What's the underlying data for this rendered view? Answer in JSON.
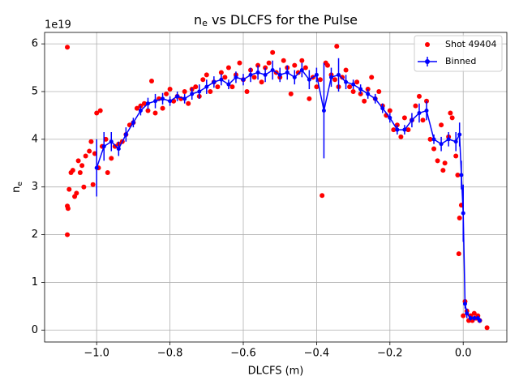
{
  "chart_data": {
    "type": "scatter",
    "title_parts": [
      "n",
      "e",
      " vs DLCFS for the Pulse"
    ],
    "x_label": "DLCFS (m)",
    "y_label_parts": [
      "n",
      "e"
    ],
    "y_offset_text": "1e19",
    "xlim": [
      -1.142,
      0.119
    ],
    "ylim": [
      -0.25,
      6.24
    ],
    "xticks": [
      {
        "value": -1.0,
        "label": "−1.0"
      },
      {
        "value": -0.8,
        "label": "−0.8"
      },
      {
        "value": -0.6,
        "label": "−0.6"
      },
      {
        "value": -0.4,
        "label": "−0.4"
      },
      {
        "value": -0.2,
        "label": "−0.2"
      },
      {
        "value": 0.0,
        "label": "0.0"
      }
    ],
    "yticks": [
      0,
      1,
      2,
      3,
      4,
      5,
      6
    ],
    "grid": true,
    "legend": "upper right",
    "series": [
      {
        "name": "Shot 49404",
        "color": "#ff0000",
        "kind": "points",
        "x": [
          -1.08,
          -1.08,
          -1.08,
          -1.078,
          -1.075,
          -1.07,
          -1.065,
          -1.06,
          -1.055,
          -1.05,
          -1.045,
          -1.04,
          -1.035,
          -1.03,
          -1.02,
          -1.015,
          -1.01,
          -1.005,
          -1.0,
          -0.99,
          -0.995,
          -0.985,
          -0.975,
          -0.97,
          -0.96,
          -0.95,
          -0.94,
          -0.93,
          -0.92,
          -0.91,
          -0.9,
          -0.89,
          -0.88,
          -0.87,
          -0.86,
          -0.85,
          -0.84,
          -0.83,
          -0.82,
          -0.81,
          -0.8,
          -0.79,
          -0.78,
          -0.77,
          -0.76,
          -0.75,
          -0.74,
          -0.73,
          -0.72,
          -0.71,
          -0.7,
          -0.69,
          -0.68,
          -0.67,
          -0.66,
          -0.65,
          -0.64,
          -0.63,
          -0.62,
          -0.61,
          -0.6,
          -0.59,
          -0.58,
          -0.57,
          -0.56,
          -0.55,
          -0.54,
          -0.53,
          -0.52,
          -0.51,
          -0.5,
          -0.49,
          -0.48,
          -0.47,
          -0.46,
          -0.45,
          -0.44,
          -0.43,
          -0.42,
          -0.41,
          -0.4,
          -0.39,
          -0.385,
          -0.375,
          -0.37,
          -0.36,
          -0.35,
          -0.345,
          -0.34,
          -0.33,
          -0.32,
          -0.31,
          -0.3,
          -0.29,
          -0.28,
          -0.27,
          -0.26,
          -0.25,
          -0.24,
          -0.23,
          -0.22,
          -0.21,
          -0.2,
          -0.19,
          -0.18,
          -0.17,
          -0.16,
          -0.15,
          -0.14,
          -0.13,
          -0.12,
          -0.11,
          -0.1,
          -0.09,
          -0.08,
          -0.07,
          -0.06,
          -0.055,
          -0.05,
          -0.04,
          -0.035,
          -0.03,
          -0.02,
          -0.015,
          -0.012,
          -0.01,
          -0.005,
          0.0,
          0.005,
          0.01,
          0.015,
          0.02,
          0.025,
          0.03,
          0.035,
          0.04,
          0.045,
          0.065
        ],
        "values": [
          5.93,
          2.0,
          2.6,
          2.55,
          2.95,
          3.3,
          3.35,
          2.8,
          2.87,
          3.55,
          3.3,
          3.45,
          3.0,
          3.65,
          3.75,
          3.95,
          3.05,
          3.7,
          4.55,
          4.6,
          3.4,
          3.85,
          4.0,
          3.3,
          3.6,
          3.85,
          3.9,
          3.95,
          4.1,
          4.3,
          4.35,
          4.65,
          4.7,
          4.75,
          4.6,
          5.22,
          4.55,
          4.85,
          4.65,
          4.95,
          5.05,
          4.8,
          4.9,
          4.85,
          5.0,
          4.75,
          5.05,
          5.1,
          4.9,
          5.25,
          5.35,
          5.0,
          5.2,
          5.1,
          5.4,
          5.3,
          5.5,
          5.1,
          5.35,
          5.6,
          5.25,
          5.0,
          5.45,
          5.3,
          5.55,
          5.2,
          5.5,
          5.6,
          5.82,
          5.4,
          5.3,
          5.65,
          5.5,
          4.95,
          5.55,
          5.4,
          5.65,
          5.5,
          4.85,
          5.3,
          5.1,
          5.25,
          2.82,
          5.6,
          5.55,
          5.35,
          5.25,
          5.95,
          5.1,
          5.3,
          5.45,
          5.1,
          5.0,
          5.2,
          4.95,
          4.8,
          5.05,
          5.3,
          4.85,
          5.0,
          4.7,
          4.5,
          4.6,
          4.2,
          4.3,
          4.05,
          4.45,
          4.2,
          4.4,
          4.7,
          4.9,
          4.4,
          4.8,
          4.0,
          3.8,
          3.55,
          4.3,
          3.35,
          3.5,
          4.05,
          4.55,
          4.45,
          3.65,
          3.25,
          1.6,
          2.35,
          2.62,
          0.3,
          0.6,
          0.4,
          0.2,
          0.3,
          0.2,
          0.35,
          0.25,
          0.3,
          0.2,
          0.05
        ]
      },
      {
        "name": "Binned",
        "color": "#0000ff",
        "kind": "errorbar",
        "x": [
          -1.0,
          -0.98,
          -0.96,
          -0.94,
          -0.92,
          -0.9,
          -0.88,
          -0.86,
          -0.84,
          -0.82,
          -0.8,
          -0.78,
          -0.76,
          -0.74,
          -0.72,
          -0.7,
          -0.68,
          -0.66,
          -0.64,
          -0.62,
          -0.6,
          -0.58,
          -0.56,
          -0.54,
          -0.52,
          -0.5,
          -0.48,
          -0.46,
          -0.44,
          -0.42,
          -0.4,
          -0.38,
          -0.36,
          -0.34,
          -0.32,
          -0.3,
          -0.28,
          -0.26,
          -0.24,
          -0.22,
          -0.2,
          -0.18,
          -0.16,
          -0.14,
          -0.12,
          -0.1,
          -0.08,
          -0.06,
          -0.04,
          -0.02,
          -0.01,
          -0.005,
          0.0,
          0.005,
          0.01,
          0.02,
          0.03,
          0.04,
          0.045
        ],
        "values": [
          3.4,
          3.85,
          3.95,
          3.8,
          4.1,
          4.35,
          4.6,
          4.75,
          4.8,
          4.85,
          4.8,
          4.9,
          4.85,
          4.95,
          5.0,
          5.1,
          5.2,
          5.25,
          5.15,
          5.3,
          5.25,
          5.35,
          5.4,
          5.35,
          5.45,
          5.35,
          5.4,
          5.3,
          5.45,
          5.25,
          5.35,
          4.6,
          5.3,
          5.35,
          5.2,
          5.15,
          5.05,
          4.95,
          4.85,
          4.65,
          4.45,
          4.2,
          4.2,
          4.4,
          4.55,
          4.6,
          4.0,
          3.9,
          4.0,
          3.95,
          4.1,
          3.25,
          2.45,
          0.55,
          0.35,
          0.25,
          0.25,
          0.25,
          0.2
        ],
        "yerr": [
          0.6,
          0.3,
          0.2,
          0.15,
          0.15,
          0.1,
          0.1,
          0.12,
          0.15,
          0.12,
          0.1,
          0.1,
          0.1,
          0.12,
          0.15,
          0.15,
          0.12,
          0.12,
          0.1,
          0.12,
          0.12,
          0.15,
          0.15,
          0.15,
          0.2,
          0.15,
          0.15,
          0.15,
          0.15,
          0.2,
          0.15,
          1.0,
          0.2,
          0.35,
          0.15,
          0.1,
          0.1,
          0.1,
          0.1,
          0.1,
          0.1,
          0.1,
          0.1,
          0.15,
          0.2,
          0.2,
          0.1,
          0.15,
          0.15,
          0.2,
          0.25,
          0.3,
          0.6,
          0.1,
          0.1,
          0.05,
          0.05,
          0.05,
          0.05
        ]
      }
    ]
  }
}
